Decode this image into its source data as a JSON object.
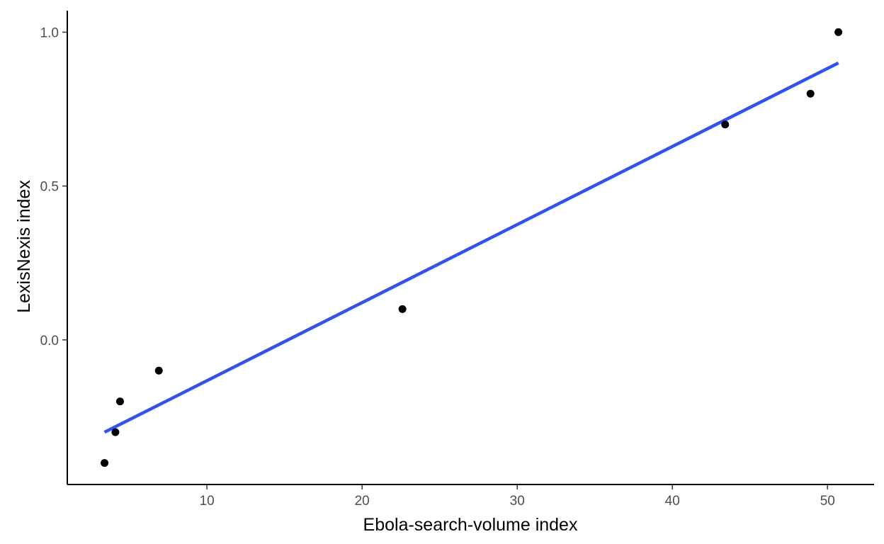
{
  "chart_data": {
    "type": "scatter",
    "title": "",
    "xlabel": "Ebola-search-volume index",
    "ylabel": "LexisNexis index",
    "xlim": [
      1,
      53
    ],
    "ylim": [
      -0.47,
      1.07
    ],
    "x_ticks": [
      10,
      20,
      30,
      40,
      50
    ],
    "x_tick_labels": [
      "10",
      "20",
      "30",
      "40",
      "50"
    ],
    "y_ticks": [
      0.0,
      0.5,
      1.0
    ],
    "y_tick_labels": [
      "0.0",
      "0.5",
      "1.0"
    ],
    "grid": false,
    "series": [
      {
        "type": "scatter",
        "color": "#000000",
        "points": [
          {
            "x": 3.4,
            "y": -0.4
          },
          {
            "x": 4.1,
            "y": -0.3
          },
          {
            "x": 4.4,
            "y": -0.2
          },
          {
            "x": 6.9,
            "y": -0.1
          },
          {
            "x": 22.6,
            "y": 0.1
          },
          {
            "x": 43.4,
            "y": 0.7
          },
          {
            "x": 48.9,
            "y": 0.8
          },
          {
            "x": 50.7,
            "y": 1.0
          }
        ]
      },
      {
        "type": "line",
        "color": "#3050f8",
        "points": [
          {
            "x": 3.4,
            "y": -0.3
          },
          {
            "x": 50.7,
            "y": 0.9
          }
        ]
      }
    ]
  }
}
